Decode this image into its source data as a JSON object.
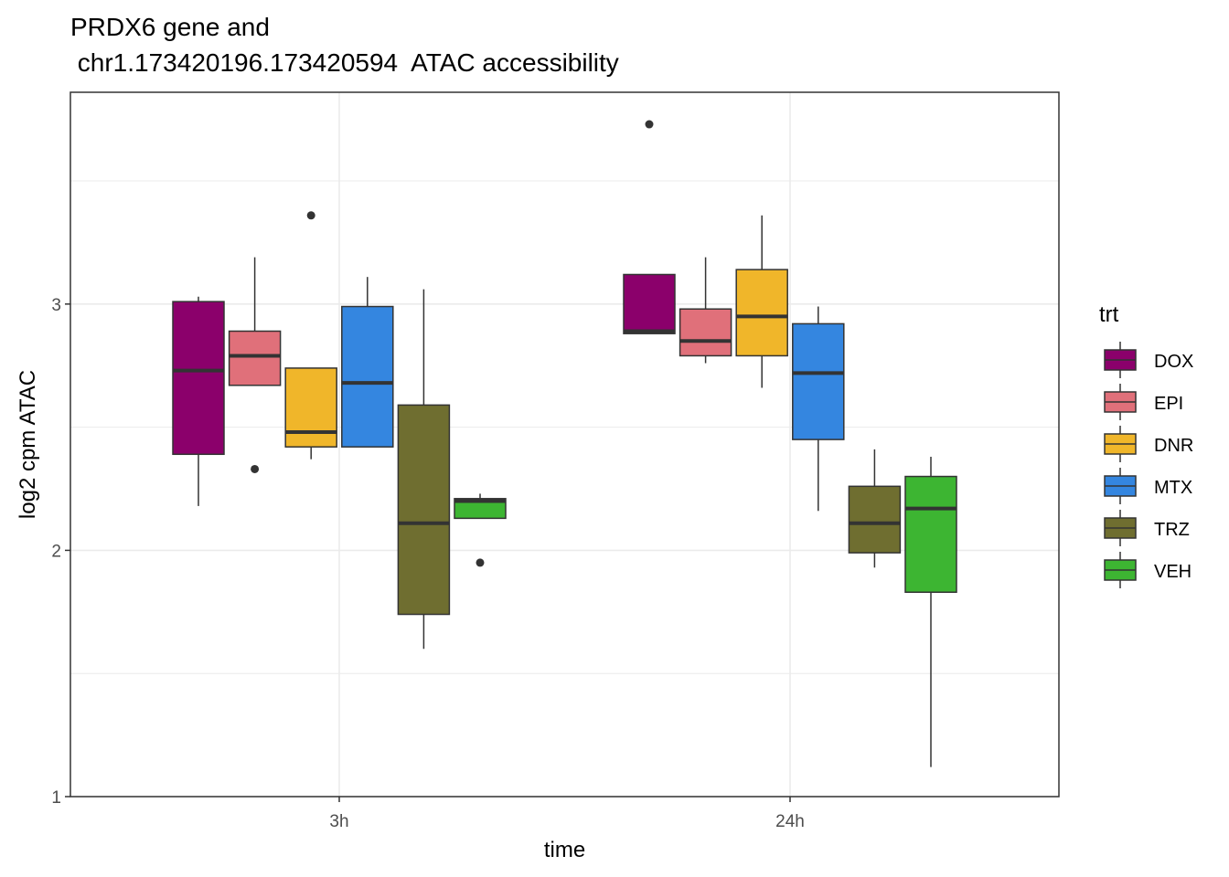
{
  "chart_data": {
    "type": "boxplot",
    "title": [
      "PRDX6  gene and",
      " chr1.173420196.173420594  ATAC accessibility"
    ],
    "xlabel": "time",
    "ylabel": "log2 cpm ATAC",
    "categories": [
      "3h",
      "24h"
    ],
    "ylim": [
      1.0,
      3.86
    ],
    "y_major_ticks": [
      1,
      2,
      3
    ],
    "y_tick_labels": [
      "1",
      "2",
      "3"
    ],
    "y_minor_ticks": [
      1.5,
      2.5,
      3.5
    ],
    "grid": true,
    "legend": {
      "title": "trt",
      "position": "right"
    },
    "series": [
      {
        "name": "DOX",
        "color": "#8B006B",
        "boxes": [
          {
            "category": "3h",
            "whisker_low": 2.18,
            "q1": 2.39,
            "median": 2.73,
            "q3": 3.01,
            "whisker_high": 3.03,
            "outliers": []
          },
          {
            "category": "24h",
            "whisker_low": 2.88,
            "q1": 2.88,
            "median": 2.89,
            "q3": 3.12,
            "whisker_high": 3.12,
            "outliers": [
              3.73
            ]
          }
        ]
      },
      {
        "name": "EPI",
        "color": "#E0707A",
        "boxes": [
          {
            "category": "3h",
            "whisker_low": 2.67,
            "q1": 2.67,
            "median": 2.79,
            "q3": 2.89,
            "whisker_high": 3.19,
            "outliers": [
              2.33
            ]
          },
          {
            "category": "24h",
            "whisker_low": 2.76,
            "q1": 2.79,
            "median": 2.85,
            "q3": 2.98,
            "whisker_high": 3.19,
            "outliers": []
          }
        ]
      },
      {
        "name": "DNR",
        "color": "#F0B62A",
        "boxes": [
          {
            "category": "3h",
            "whisker_low": 2.37,
            "q1": 2.42,
            "median": 2.48,
            "q3": 2.74,
            "whisker_high": 2.74,
            "outliers": [
              3.36
            ]
          },
          {
            "category": "24h",
            "whisker_low": 2.66,
            "q1": 2.79,
            "median": 2.95,
            "q3": 3.14,
            "whisker_high": 3.36,
            "outliers": []
          }
        ]
      },
      {
        "name": "MTX",
        "color": "#3486E0",
        "boxes": [
          {
            "category": "3h",
            "whisker_low": 2.42,
            "q1": 2.42,
            "median": 2.68,
            "q3": 2.99,
            "whisker_high": 3.11,
            "outliers": []
          },
          {
            "category": "24h",
            "whisker_low": 2.16,
            "q1": 2.45,
            "median": 2.72,
            "q3": 2.92,
            "whisker_high": 2.99,
            "outliers": []
          }
        ]
      },
      {
        "name": "TRZ",
        "color": "#6F6E30",
        "boxes": [
          {
            "category": "3h",
            "whisker_low": 1.6,
            "q1": 1.74,
            "median": 2.11,
            "q3": 2.59,
            "whisker_high": 3.06,
            "outliers": []
          },
          {
            "category": "24h",
            "whisker_low": 1.93,
            "q1": 1.99,
            "median": 2.11,
            "q3": 2.26,
            "whisker_high": 2.41,
            "outliers": []
          }
        ]
      },
      {
        "name": "VEH",
        "color": "#3DB532",
        "boxes": [
          {
            "category": "3h",
            "whisker_low": 2.13,
            "q1": 2.13,
            "median": 2.2,
            "q3": 2.21,
            "whisker_high": 2.23,
            "outliers": [
              1.95
            ]
          },
          {
            "category": "24h",
            "whisker_low": 1.12,
            "q1": 1.83,
            "median": 2.17,
            "q3": 2.3,
            "whisker_high": 2.38,
            "outliers": []
          }
        ]
      }
    ]
  }
}
